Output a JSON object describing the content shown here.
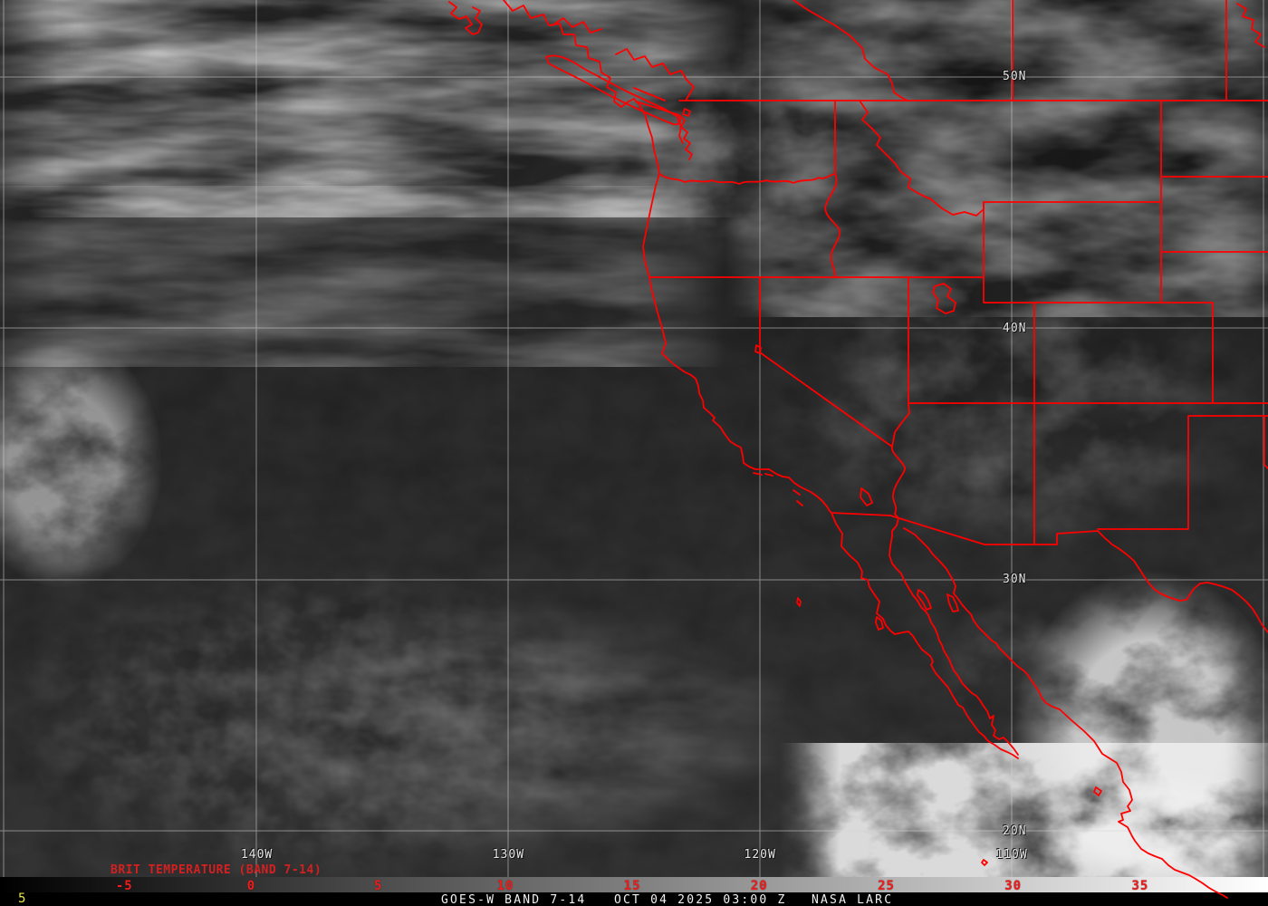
{
  "annotations": {
    "product_label": "BRIT TEMPERATURE (BAND 7-14)",
    "frame_indicator": "5"
  },
  "status_bar": {
    "satellite": "GOES-W BAND 7-14",
    "timestamp": "OCT 04 2025 03:00 Z",
    "source": "NASA LARC"
  },
  "colorbar": {
    "description": "brightness temperature scale, black to white",
    "ticks": [
      -5,
      0,
      5,
      10,
      15,
      20,
      25,
      30,
      35
    ]
  },
  "map_labels": {
    "latitudes": [
      {
        "label": "50N",
        "value": 50
      },
      {
        "label": "40N",
        "value": 40
      },
      {
        "label": "30N",
        "value": 30
      },
      {
        "label": "20N",
        "value": 20
      }
    ],
    "longitudes": [
      {
        "label": "140W",
        "value": 140
      },
      {
        "label": "130W",
        "value": 130
      },
      {
        "label": "120W",
        "value": 120
      },
      {
        "label": "110W",
        "value": 110
      }
    ]
  },
  "colors": {
    "boundary_red": "#ff0000",
    "annotation_red": "#d42020",
    "tick_red": "#e82020",
    "grid_white": "#d4d4d4",
    "label_white": "#e6e6e6",
    "frame_yellow": "#e8e840",
    "bar_text_white": "#f2f2f2",
    "bar_bg": "#000000"
  }
}
